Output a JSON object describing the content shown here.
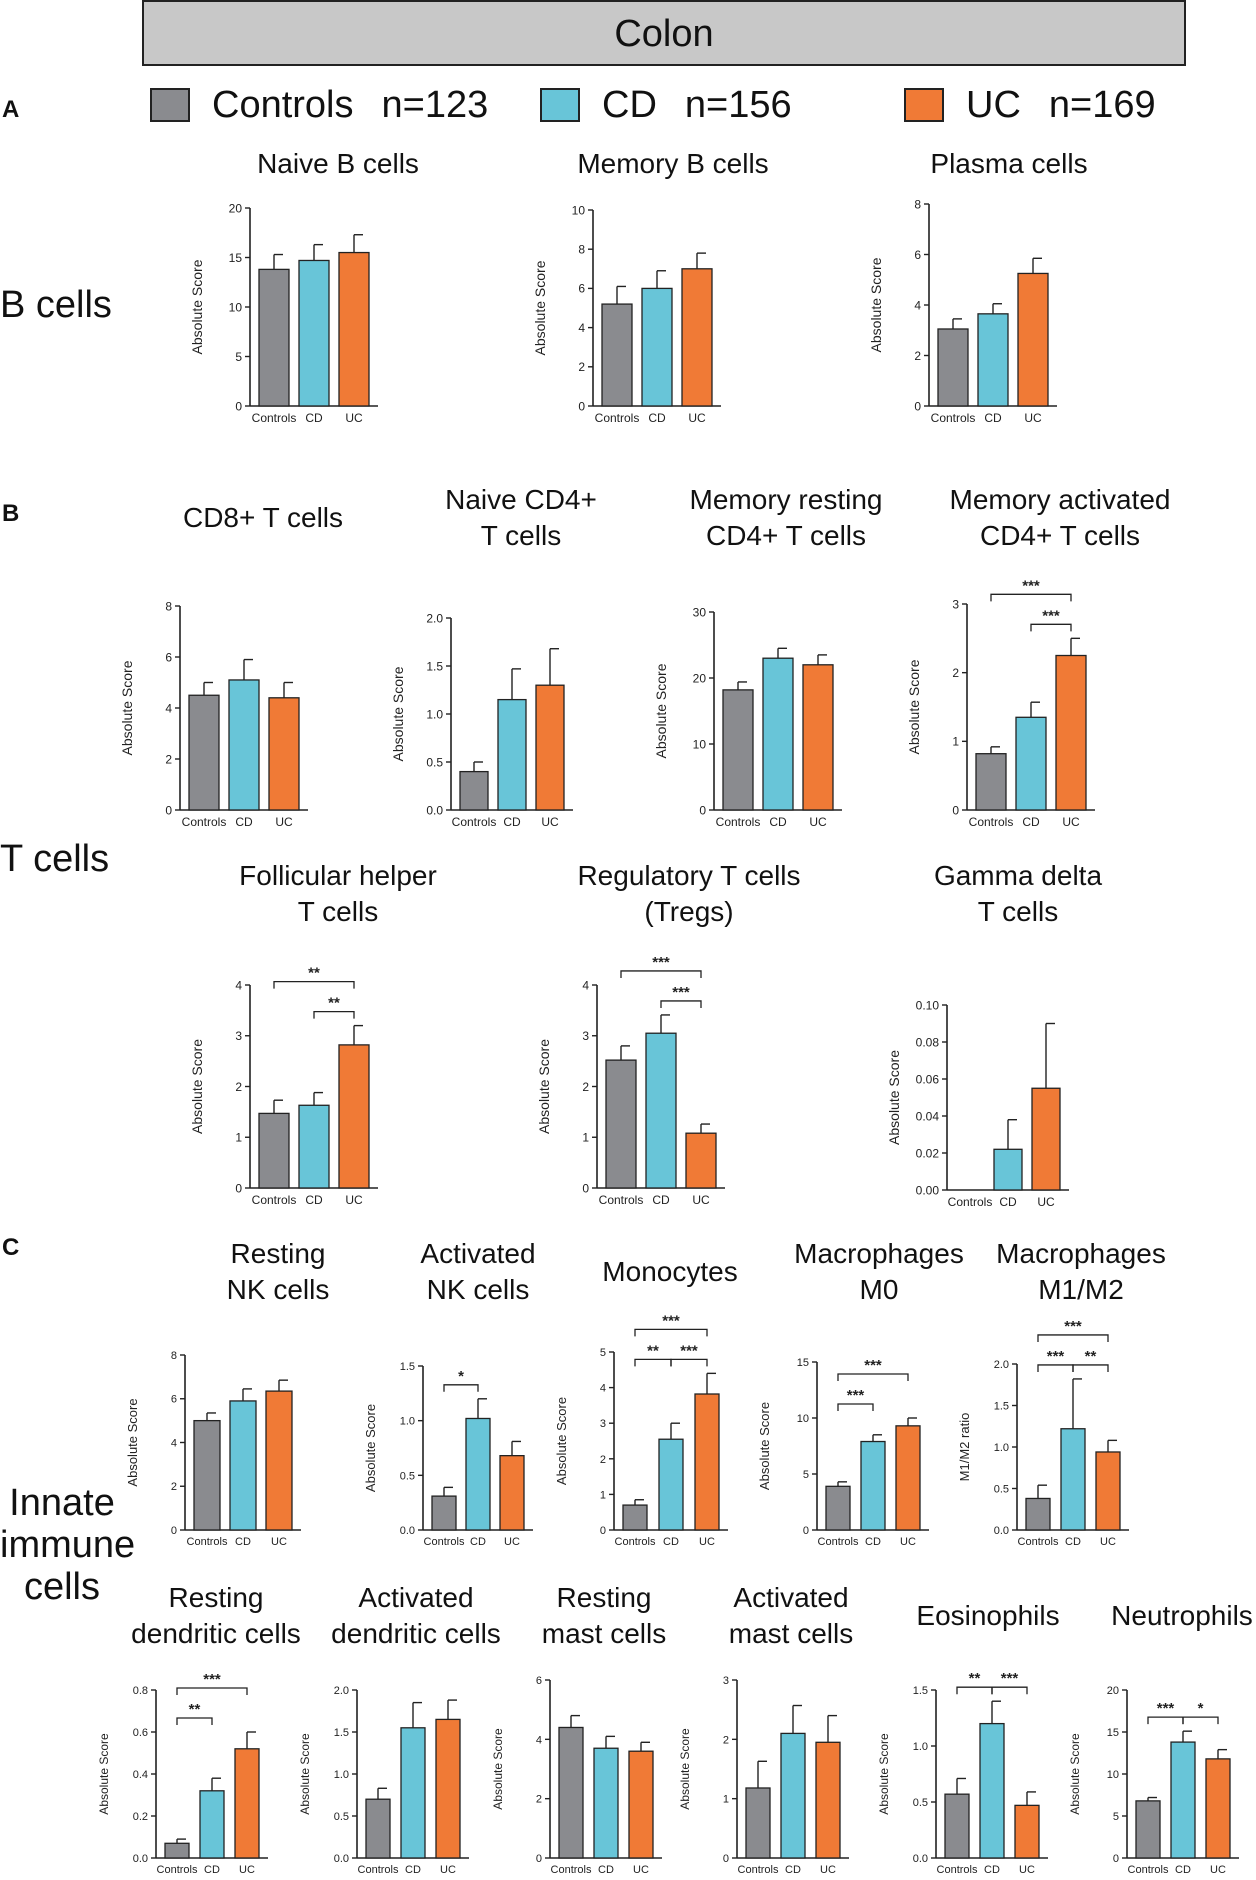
{
  "header": {
    "title": "Colon"
  },
  "legend": [
    {
      "label": "Controls",
      "n": "n=123",
      "color": "#8a8b8f"
    },
    {
      "label": "CD",
      "n": "n=156",
      "color": "#68c5d8"
    },
    {
      "label": "UC",
      "n": "n=169",
      "color": "#f07a36"
    }
  ],
  "panel_letters": [
    "A",
    "B",
    "C"
  ],
  "group_labels": {
    "b_cells": "B cells",
    "t_cells": "T cells",
    "innate": [
      "Innate",
      "immune",
      "cells"
    ]
  },
  "chart_data": [
    {
      "id": "naive-b",
      "type": "bar",
      "title": [
        "Naive B cells"
      ],
      "ylabel": "Absolute Score",
      "categories": [
        "Controls",
        "CD",
        "UC"
      ],
      "values": [
        13.8,
        14.7,
        15.5
      ],
      "errors": [
        1.5,
        1.6,
        1.8
      ],
      "ylim": [
        0,
        20
      ],
      "yticks": [
        "0",
        "5",
        "10",
        "15",
        "20"
      ],
      "sig": []
    },
    {
      "id": "memory-b",
      "type": "bar",
      "title": [
        "Memory B cells"
      ],
      "ylabel": "Absolute Score",
      "categories": [
        "Controls",
        "CD",
        "UC"
      ],
      "values": [
        5.2,
        6.0,
        7.0
      ],
      "errors": [
        0.9,
        0.9,
        0.8
      ],
      "ylim": [
        0,
        10
      ],
      "yticks": [
        "0",
        "2",
        "4",
        "6",
        "8",
        "10"
      ],
      "sig": []
    },
    {
      "id": "plasma",
      "type": "bar",
      "title": [
        "Plasma cells"
      ],
      "ylabel": "Absolute Score",
      "categories": [
        "Controls",
        "CD",
        "UC"
      ],
      "values": [
        3.05,
        3.65,
        5.25
      ],
      "errors": [
        0.4,
        0.4,
        0.6
      ],
      "ylim": [
        0,
        8
      ],
      "yticks": [
        "0",
        "2",
        "4",
        "6",
        "8"
      ],
      "sig": []
    },
    {
      "id": "cd8-t",
      "type": "bar",
      "title": [
        "CD8+ T cells"
      ],
      "ylabel": "Absolute Score",
      "categories": [
        "Controls",
        "CD",
        "UC"
      ],
      "values": [
        4.5,
        5.1,
        4.4
      ],
      "errors": [
        0.5,
        0.8,
        0.6
      ],
      "ylim": [
        0,
        8
      ],
      "yticks": [
        "0",
        "2",
        "4",
        "6",
        "8"
      ],
      "sig": []
    },
    {
      "id": "naive-cd4",
      "type": "bar",
      "title": [
        "Naive CD4+",
        "T cells"
      ],
      "ylabel": "Absolute Score",
      "categories": [
        "Controls",
        "CD",
        "UC"
      ],
      "values": [
        0.4,
        1.15,
        1.3
      ],
      "errors": [
        0.1,
        0.32,
        0.38
      ],
      "ylim": [
        0,
        2
      ],
      "yticks": [
        "0.0",
        "0.5",
        "1.0",
        "1.5",
        "2.0"
      ],
      "sig": []
    },
    {
      "id": "mem-rest-cd4",
      "type": "bar",
      "title": [
        "Memory resting",
        "CD4+ T cells"
      ],
      "ylabel": "Absolute Score",
      "categories": [
        "Controls",
        "CD",
        "UC"
      ],
      "values": [
        18.2,
        23.0,
        22.0
      ],
      "errors": [
        1.2,
        1.5,
        1.5
      ],
      "ylim": [
        0,
        30
      ],
      "yticks": [
        "0",
        "10",
        "20",
        "30"
      ],
      "sig": []
    },
    {
      "id": "mem-act-cd4",
      "type": "bar",
      "title": [
        "Memory activated",
        "CD4+ T cells"
      ],
      "ylabel": "Absolute Score",
      "categories": [
        "Controls",
        "CD",
        "UC"
      ],
      "values": [
        0.82,
        1.35,
        2.25
      ],
      "errors": [
        0.1,
        0.22,
        0.25
      ],
      "ylim": [
        0,
        3
      ],
      "yticks": [
        "0",
        "1",
        "2",
        "3"
      ],
      "sig": [
        {
          "from": 0,
          "to": 2,
          "label": "***"
        },
        {
          "from": 1,
          "to": 2,
          "label": "***"
        }
      ]
    },
    {
      "id": "tfh",
      "type": "bar",
      "title": [
        "Follicular helper",
        "T cells"
      ],
      "ylabel": "Absolute Score",
      "categories": [
        "Controls",
        "CD",
        "UC"
      ],
      "values": [
        1.47,
        1.63,
        2.82
      ],
      "errors": [
        0.26,
        0.25,
        0.38
      ],
      "ylim": [
        0,
        4
      ],
      "yticks": [
        "0",
        "1",
        "2",
        "3",
        "4"
      ],
      "sig": [
        {
          "from": 0,
          "to": 2,
          "label": "**"
        },
        {
          "from": 1,
          "to": 2,
          "label": "**"
        }
      ]
    },
    {
      "id": "tregs",
      "type": "bar",
      "title": [
        "Regulatory T cells",
        "(Tregs)"
      ],
      "ylabel": "Absolute Score",
      "categories": [
        "Controls",
        "CD",
        "UC"
      ],
      "values": [
        2.52,
        3.05,
        1.08
      ],
      "errors": [
        0.28,
        0.36,
        0.18
      ],
      "ylim": [
        0,
        4
      ],
      "yticks": [
        "0",
        "1",
        "2",
        "3",
        "4"
      ],
      "sig": [
        {
          "from": 0,
          "to": 2,
          "label": "***"
        },
        {
          "from": 1,
          "to": 2,
          "label": "***"
        }
      ]
    },
    {
      "id": "gamma-delta",
      "type": "bar",
      "title": [
        "Gamma delta",
        "T cells"
      ],
      "ylabel": "Absolute Score",
      "categories": [
        "Controls",
        "CD",
        "UC"
      ],
      "values": [
        0,
        0.022,
        0.055
      ],
      "errors": [
        0,
        0.016,
        0.035
      ],
      "ylim": [
        0,
        0.1
      ],
      "yticks": [
        "0.00",
        "0.02",
        "0.04",
        "0.06",
        "0.08",
        "0.10"
      ],
      "sig": []
    },
    {
      "id": "rest-nk",
      "type": "bar",
      "title": [
        "Resting",
        "NK cells"
      ],
      "ylabel": "Absolute Score",
      "categories": [
        "Controls",
        "CD",
        "UC"
      ],
      "values": [
        5.0,
        5.9,
        6.35
      ],
      "errors": [
        0.35,
        0.55,
        0.5
      ],
      "ylim": [
        0,
        8
      ],
      "yticks": [
        "0",
        "2",
        "4",
        "6",
        "8"
      ],
      "sig": []
    },
    {
      "id": "act-nk",
      "type": "bar",
      "title": [
        "Activated",
        "NK cells"
      ],
      "ylabel": "Absolute Score",
      "categories": [
        "Controls",
        "CD",
        "UC"
      ],
      "values": [
        0.31,
        1.02,
        0.68
      ],
      "errors": [
        0.08,
        0.18,
        0.13
      ],
      "ylim": [
        0,
        1.5
      ],
      "yticks": [
        "0.0",
        "0.5",
        "1.0",
        "1.5"
      ],
      "sig": [
        {
          "from": 0,
          "to": 1,
          "label": "*"
        }
      ]
    },
    {
      "id": "monocytes",
      "type": "bar",
      "title": [
        "Monocytes"
      ],
      "ylabel": "Absolute Score",
      "categories": [
        "Controls",
        "CD",
        "UC"
      ],
      "values": [
        0.7,
        2.55,
        3.82
      ],
      "errors": [
        0.15,
        0.45,
        0.58
      ],
      "ylim": [
        0,
        5
      ],
      "yticks": [
        "0",
        "1",
        "2",
        "3",
        "4",
        "5"
      ],
      "sig": [
        {
          "from": 0,
          "to": 2,
          "label": "***"
        },
        {
          "from": 0,
          "to": 1,
          "label": "**"
        },
        {
          "from": 1,
          "to": 2,
          "label": "***"
        }
      ]
    },
    {
      "id": "mac-m0",
      "type": "bar",
      "title": [
        "Macrophages",
        "M0"
      ],
      "ylabel": "Absolute Score",
      "categories": [
        "Controls",
        "CD",
        "UC"
      ],
      "values": [
        3.9,
        7.9,
        9.3
      ],
      "errors": [
        0.4,
        0.6,
        0.7
      ],
      "ylim": [
        0,
        15
      ],
      "yticks": [
        "0",
        "5",
        "10",
        "15"
      ],
      "sig": [
        {
          "from": 0,
          "to": 2,
          "label": "***"
        },
        {
          "from": 0,
          "to": 1,
          "label": "***"
        }
      ]
    },
    {
      "id": "mac-m1m2",
      "type": "bar",
      "title": [
        "Macrophages",
        "M1/M2"
      ],
      "ylabel": "M1/M2 ratio",
      "categories": [
        "Controls",
        "CD",
        "UC"
      ],
      "values": [
        0.38,
        1.22,
        0.94
      ],
      "errors": [
        0.16,
        0.6,
        0.14
      ],
      "ylim": [
        0,
        2
      ],
      "yticks": [
        "0.0",
        "0.5",
        "1.0",
        "1.5",
        "2.0"
      ],
      "sig": [
        {
          "from": 0,
          "to": 2,
          "label": "***"
        },
        {
          "from": 0,
          "to": 1,
          "label": "***"
        },
        {
          "from": 1,
          "to": 2,
          "label": "**"
        }
      ]
    },
    {
      "id": "rest-dc",
      "type": "bar",
      "title": [
        "Resting",
        "dendritic cells"
      ],
      "ylabel": "Absolute Score",
      "categories": [
        "Controls",
        "CD",
        "UC"
      ],
      "values": [
        0.07,
        0.32,
        0.52
      ],
      "errors": [
        0.02,
        0.06,
        0.08
      ],
      "ylim": [
        0,
        0.8
      ],
      "yticks": [
        "0.0",
        "0.2",
        "0.4",
        "0.6",
        "0.8"
      ],
      "sig": [
        {
          "from": 0,
          "to": 2,
          "label": "***"
        },
        {
          "from": 0,
          "to": 1,
          "label": "**"
        }
      ]
    },
    {
      "id": "act-dc",
      "type": "bar",
      "title": [
        "Activated",
        "dendritic cells"
      ],
      "ylabel": "Absolute Score",
      "categories": [
        "Controls",
        "CD",
        "UC"
      ],
      "values": [
        0.7,
        1.55,
        1.65
      ],
      "errors": [
        0.13,
        0.3,
        0.23
      ],
      "ylim": [
        0,
        2
      ],
      "yticks": [
        "0.0",
        "0.5",
        "1.0",
        "1.5",
        "2.0"
      ],
      "sig": []
    },
    {
      "id": "rest-mast",
      "type": "bar",
      "title": [
        "Resting",
        "mast cells"
      ],
      "ylabel": "Absolute Score",
      "categories": [
        "Controls",
        "CD",
        "UC"
      ],
      "values": [
        4.4,
        3.7,
        3.6
      ],
      "errors": [
        0.4,
        0.4,
        0.3
      ],
      "ylim": [
        0,
        6
      ],
      "yticks": [
        "0",
        "2",
        "4",
        "6"
      ],
      "sig": []
    },
    {
      "id": "act-mast",
      "type": "bar",
      "title": [
        "Activated",
        "mast cells"
      ],
      "ylabel": "Absolute Score",
      "categories": [
        "Controls",
        "CD",
        "UC"
      ],
      "values": [
        1.18,
        2.1,
        1.95
      ],
      "errors": [
        0.45,
        0.47,
        0.45
      ],
      "ylim": [
        0,
        3
      ],
      "yticks": [
        "0",
        "1",
        "2",
        "3"
      ],
      "sig": []
    },
    {
      "id": "eosinophils",
      "type": "bar",
      "title": [
        "Eosinophils"
      ],
      "ylabel": "Absolute Score",
      "categories": [
        "Controls",
        "CD",
        "UC"
      ],
      "values": [
        0.57,
        1.2,
        0.47
      ],
      "errors": [
        0.14,
        0.2,
        0.12
      ],
      "ylim": [
        0,
        1.5
      ],
      "yticks": [
        "0.0",
        "0.5",
        "1.0",
        "1.5"
      ],
      "sig": [
        {
          "from": 0,
          "to": 1,
          "label": "**"
        },
        {
          "from": 1,
          "to": 2,
          "label": "***"
        }
      ]
    },
    {
      "id": "neutrophils",
      "type": "bar",
      "title": [
        "Neutrophils"
      ],
      "ylabel": "Absolute Score",
      "categories": [
        "Controls",
        "CD",
        "UC"
      ],
      "values": [
        6.8,
        13.8,
        11.8
      ],
      "errors": [
        0.4,
        1.3,
        1.1
      ],
      "ylim": [
        0,
        20
      ],
      "yticks": [
        "0",
        "5",
        "10",
        "15",
        "20"
      ],
      "sig": [
        {
          "from": 0,
          "to": 1,
          "label": "***"
        },
        {
          "from": 1,
          "to": 2,
          "label": "*"
        }
      ]
    }
  ]
}
